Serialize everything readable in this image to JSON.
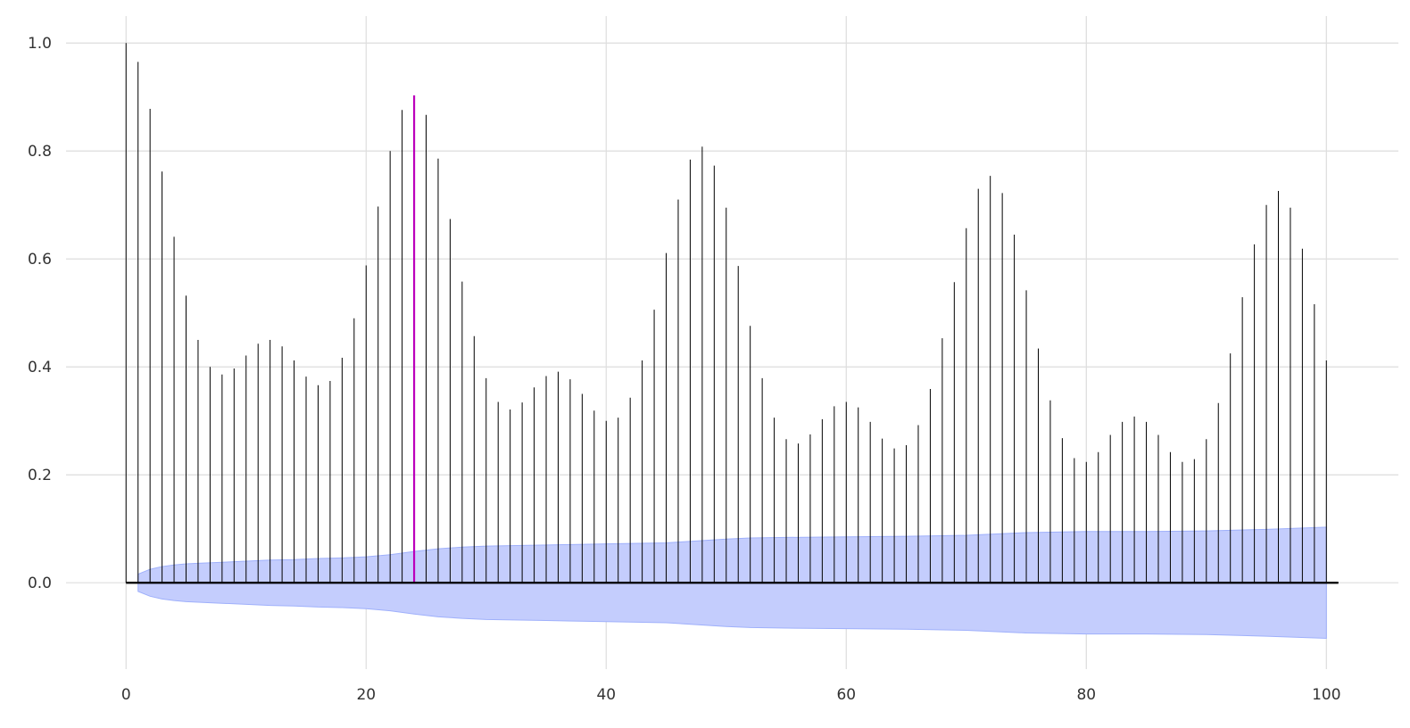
{
  "chart_data": {
    "type": "bar",
    "title": "",
    "xlabel": "",
    "ylabel": "",
    "xlim": [
      -5,
      106
    ],
    "ylim": [
      -0.16,
      1.05
    ],
    "grid": true,
    "xticks": [
      0,
      20,
      40,
      60,
      80,
      100
    ],
    "yticks": [
      0.0,
      0.2,
      0.4,
      0.6,
      0.8,
      1.0
    ],
    "xtick_labels": [
      "0",
      "20",
      "40",
      "60",
      "80",
      "100"
    ],
    "ytick_labels": [
      "0.0",
      "0.2",
      "0.4",
      "0.6",
      "0.8",
      "1.0"
    ],
    "lags": [
      0,
      1,
      2,
      3,
      4,
      5,
      6,
      7,
      8,
      9,
      10,
      11,
      12,
      13,
      14,
      15,
      16,
      17,
      18,
      19,
      20,
      21,
      22,
      23,
      24,
      25,
      26,
      27,
      28,
      29,
      30,
      31,
      32,
      33,
      34,
      35,
      36,
      37,
      38,
      39,
      40,
      41,
      42,
      43,
      44,
      45,
      46,
      47,
      48,
      49,
      50,
      51,
      52,
      53,
      54,
      55,
      56,
      57,
      58,
      59,
      60,
      61,
      62,
      63,
      64,
      65,
      66,
      67,
      68,
      69,
      70,
      71,
      72,
      73,
      74,
      75,
      76,
      77,
      78,
      79,
      80,
      81,
      82,
      83,
      84,
      85,
      86,
      87,
      88,
      89,
      90,
      91,
      92,
      93,
      94,
      95,
      96,
      97,
      98,
      99,
      100
    ],
    "values": [
      1.0,
      0.965,
      0.878,
      0.762,
      0.641,
      0.532,
      0.45,
      0.4,
      0.386,
      0.397,
      0.421,
      0.443,
      0.45,
      0.438,
      0.412,
      0.382,
      0.366,
      0.374,
      0.417,
      0.49,
      0.588,
      0.697,
      0.8,
      0.876,
      0.903,
      0.867,
      0.786,
      0.674,
      0.558,
      0.457,
      0.379,
      0.335,
      0.321,
      0.334,
      0.362,
      0.383,
      0.391,
      0.377,
      0.35,
      0.319,
      0.3,
      0.306,
      0.343,
      0.412,
      0.506,
      0.611,
      0.71,
      0.784,
      0.808,
      0.773,
      0.695,
      0.587,
      0.476,
      0.379,
      0.306,
      0.266,
      0.258,
      0.275,
      0.303,
      0.327,
      0.335,
      0.325,
      0.298,
      0.267,
      0.249,
      0.255,
      0.292,
      0.359,
      0.453,
      0.557,
      0.657,
      0.73,
      0.754,
      0.722,
      0.645,
      0.542,
      0.434,
      0.338,
      0.268,
      0.231,
      0.224,
      0.242,
      0.274,
      0.298,
      0.308,
      0.298,
      0.274,
      0.242,
      0.224,
      0.229,
      0.266,
      0.333,
      0.425,
      0.529,
      0.627,
      0.7,
      0.726,
      0.695,
      0.619,
      0.516,
      0.412
    ],
    "highlight_lag": 24,
    "highlight_color": "#bb00bb",
    "stem_color": "#000000",
    "confidence_band": {
      "x": [
        1,
        2,
        3,
        4,
        5,
        6,
        8,
        10,
        12,
        14,
        16,
        18,
        20,
        22,
        24,
        26,
        28,
        30,
        35,
        40,
        45,
        50,
        52,
        55,
        60,
        65,
        70,
        75,
        80,
        85,
        90,
        95,
        100
      ],
      "upper": [
        0.016,
        0.025,
        0.03,
        0.033,
        0.035,
        0.036,
        0.038,
        0.04,
        0.042,
        0.043,
        0.045,
        0.046,
        0.048,
        0.052,
        0.058,
        0.063,
        0.066,
        0.068,
        0.07,
        0.072,
        0.074,
        0.081,
        0.083,
        0.084,
        0.085,
        0.086,
        0.088,
        0.093,
        0.095,
        0.095,
        0.096,
        0.099,
        0.103
      ],
      "lower": [
        -0.016,
        -0.025,
        -0.03,
        -0.033,
        -0.035,
        -0.036,
        -0.038,
        -0.04,
        -0.042,
        -0.043,
        -0.045,
        -0.046,
        -0.048,
        -0.052,
        -0.058,
        -0.063,
        -0.066,
        -0.068,
        -0.07,
        -0.072,
        -0.074,
        -0.081,
        -0.083,
        -0.084,
        -0.085,
        -0.086,
        -0.088,
        -0.093,
        -0.095,
        -0.095,
        -0.096,
        -0.099,
        -0.103
      ],
      "fill_color": "#c4cdfd",
      "edge_color": "#9fb0fb"
    },
    "zero_line": {
      "x_end": 101,
      "color": "#000000"
    }
  }
}
